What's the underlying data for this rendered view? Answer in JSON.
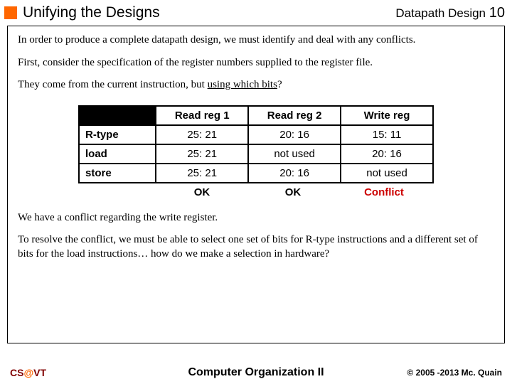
{
  "header": {
    "title": "Unifying the Designs",
    "section": "Datapath Design",
    "page_num": "10",
    "accent_color": "#ff6600"
  },
  "paragraphs": {
    "p1": "In order to produce a complete datapath design, we must identify and deal with any conflicts.",
    "p2": "First, consider the specification of the register numbers supplied to the register file.",
    "p3_pre": "They come from the current instruction, but ",
    "p3_underline": "using which bits",
    "p3_post": "?",
    "p4": "We have a conflict regarding the write register.",
    "p5": "To resolve the conflict, we must be able to select one set of bits for R-type instructions and a different set of bits for the load instructions… how do we make a selection in hardware?"
  },
  "table": {
    "columns": [
      "Read reg 1",
      "Read reg 2",
      "Write reg"
    ],
    "rows": [
      {
        "label": "R-type",
        "cells": [
          "25: 21",
          "20: 16",
          "15: 11"
        ]
      },
      {
        "label": "load",
        "cells": [
          "25: 21",
          "not used",
          "20: 16"
        ]
      },
      {
        "label": "store",
        "cells": [
          "25: 21",
          "20: 16",
          "not used"
        ]
      }
    ],
    "status": [
      "OK",
      "OK",
      "Conflict"
    ],
    "conflict_color": "#cc0000",
    "border_color": "#000000",
    "header_bg": "#000000",
    "font_family": "Arial",
    "font_size": 15
  },
  "footer": {
    "left_cs": "CS",
    "left_at": "@",
    "left_vt": "VT",
    "center": "Computer Organization II",
    "right": "© 2005 -2013 Mc. Quain",
    "maroon": "#800000",
    "orange": "#ff6600"
  }
}
